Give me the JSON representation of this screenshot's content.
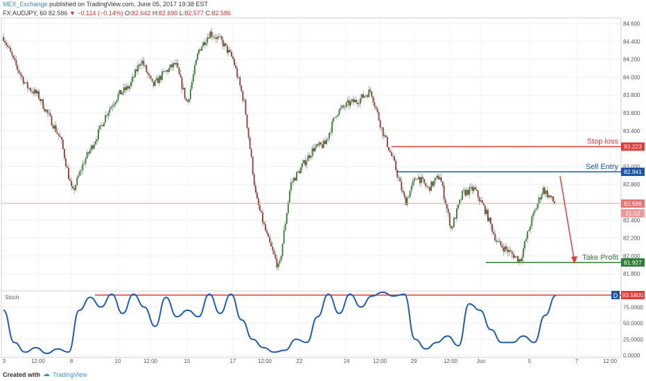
{
  "header": {
    "publisher": "MEX_Exchange",
    "published_text": "published on TradingView.com, June 05, 2017 19:38 EST",
    "symbol": "FX:AUDJPY, 60",
    "last": "82.586",
    "change_arrow": "▼",
    "change": "−0.114 (−0.14%)",
    "o_label": "O:",
    "o_val": "82.642",
    "h_label": "H:",
    "h_val": "82.690",
    "l_label": "L:",
    "l_val": "82.577",
    "c_label": "C:",
    "c_val": "82.586"
  },
  "footer": {
    "created_with": "Created with",
    "brand": "TradingView"
  },
  "colors": {
    "up": "#2e7d32",
    "down": "#8d3a2c",
    "stop": "#e53935",
    "entry": "#1a56a5",
    "profit": "#2e7d32",
    "stoch": "#1a5bb8"
  },
  "chart_data": [
    {
      "type": "candlestick",
      "symbol": "FX:AUDJPY",
      "interval": "60",
      "ylim": [
        81.7,
        84.65
      ],
      "y_ticks": [
        "84.600",
        "84.400",
        "84.200",
        "84.000",
        "83.800",
        "83.600",
        "83.400",
        "83.200",
        "83.000",
        "82.800",
        "82.600",
        "82.400",
        "82.200",
        "82.000",
        "81.800"
      ],
      "x_ticks": [
        "3",
        "12:00",
        "8",
        "10",
        "12:00",
        "15",
        "17",
        "12:00",
        "22",
        "24",
        "12:00",
        "29",
        "12:00",
        "Jun",
        "5",
        "7",
        "12:00"
      ],
      "price_path": [
        84.45,
        84.15,
        83.9,
        83.8,
        83.55,
        83.3,
        82.7,
        83.05,
        83.3,
        83.6,
        83.8,
        83.9,
        84.2,
        83.9,
        84.05,
        84.15,
        83.7,
        84.3,
        84.5,
        84.4,
        84.2,
        83.7,
        82.65,
        82.2,
        81.85,
        82.8,
        83.0,
        83.2,
        83.25,
        83.6,
        83.7,
        83.75,
        83.85,
        83.4,
        83.05,
        82.6,
        82.9,
        82.75,
        82.9,
        82.3,
        82.7,
        82.75,
        82.5,
        82.15,
        82.05,
        81.95,
        82.4,
        82.75,
        82.59
      ],
      "annotations": [
        {
          "label": "Stop loss",
          "value": "83.223"
        },
        {
          "label": "Sell Entry",
          "value": "82.941"
        },
        {
          "label": "Take Profit",
          "value": "81.927"
        }
      ],
      "last_price": "82.586",
      "countdown": "21:12"
    },
    {
      "type": "line",
      "indicator": "Stoch",
      "ylim": [
        0,
        100
      ],
      "y_ticks": [
        "75.0000",
        "50.0000",
        "25.0000",
        "0.0000"
      ],
      "level": "93.5800",
      "badge": "D",
      "values": [
        70,
        20,
        5,
        12,
        3,
        10,
        5,
        70,
        90,
        75,
        95,
        65,
        95,
        75,
        45,
        90,
        60,
        70,
        60,
        95,
        65,
        95,
        55,
        25,
        12,
        5,
        8,
        25,
        20,
        60,
        95,
        65,
        95,
        75,
        92,
        98,
        92,
        95,
        25,
        10,
        20,
        30,
        15,
        80,
        70,
        40,
        20,
        20,
        30,
        20,
        62,
        93
      ]
    }
  ]
}
